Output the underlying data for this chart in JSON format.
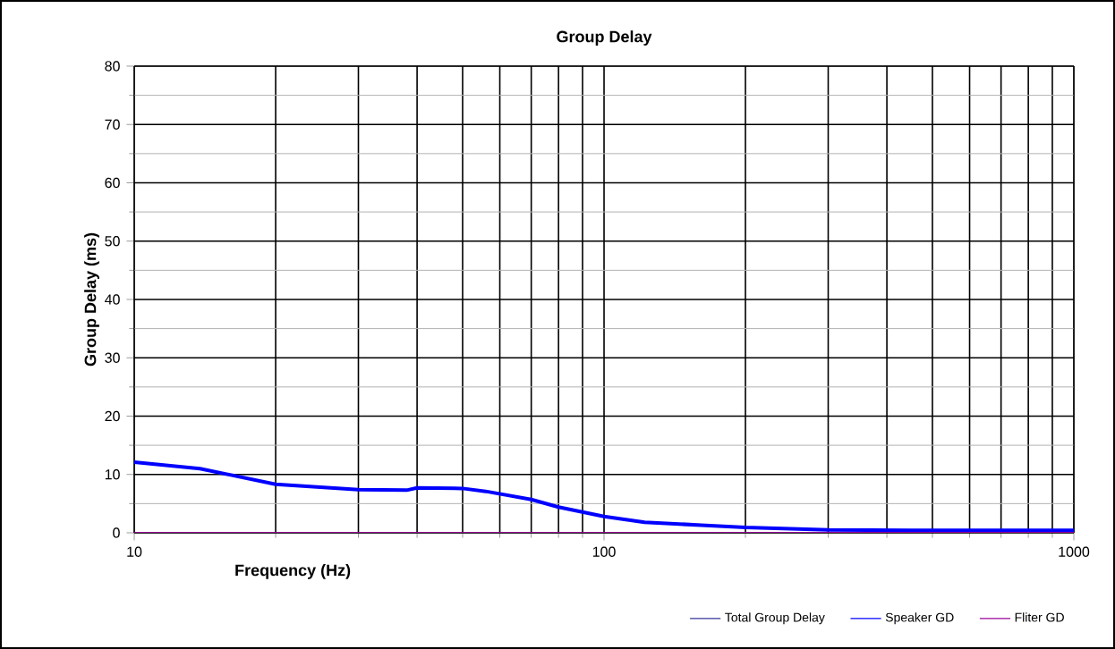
{
  "chart_data": {
    "type": "line",
    "title": "Group Delay",
    "xlabel": "Frequency (Hz)",
    "ylabel": "Group Delay (ms)",
    "log": "x",
    "xlim": [
      10,
      1000
    ],
    "xticks": [
      10,
      100,
      1000
    ],
    "ylim": [
      0,
      80
    ],
    "yticks": [
      0,
      10,
      20,
      30,
      40,
      50,
      60,
      70,
      80
    ],
    "grid": true,
    "legend": "bottom right",
    "marker": "none",
    "line_style": "solid",
    "series": [
      {
        "name": "Total Group Delay",
        "color": "#333399",
        "values": [
          null
        ]
      },
      {
        "name": "Speaker GD",
        "color": "#0000ff",
        "x": [
          10,
          13.8,
          20,
          30,
          38,
          40,
          50,
          56,
          70,
          80,
          100,
          122,
          161,
          200,
          300,
          500,
          1000
        ],
        "values": [
          12.1,
          11.0,
          8.3,
          7.4,
          7.3,
          7.7,
          7.6,
          7.1,
          5.7,
          4.4,
          2.8,
          1.8,
          1.3,
          0.9,
          0.5,
          0.4,
          0.4
        ]
      },
      {
        "name": "Fliter GD",
        "color": "#990099",
        "x": [
          10,
          1000
        ],
        "values": [
          0,
          0
        ]
      }
    ]
  }
}
